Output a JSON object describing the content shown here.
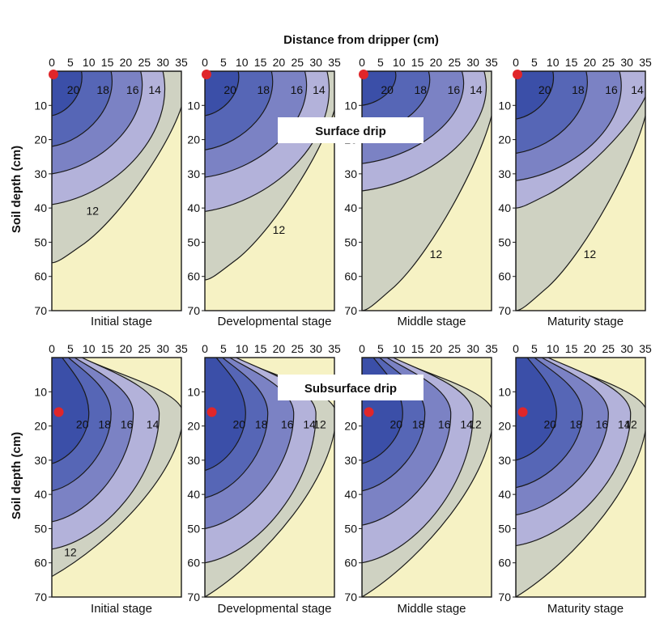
{
  "figure": {
    "top_xlabel": "Distance from dripper (cm)",
    "row_ylabel": "Soil depth (cm)"
  },
  "colors": {
    "c20": "#3b4fa8",
    "c18": "#5666b6",
    "c16": "#7b82c4",
    "c14": "#b3b2da",
    "c12": "#cfd2c2",
    "bg": "#f6f2c4",
    "dripper": "#e0262a"
  },
  "chart_data": [
    {
      "type": "contour",
      "row": "Surface drip",
      "x_ticks": [
        "0",
        "5",
        "10",
        "15",
        "20",
        "25",
        "30",
        "35"
      ],
      "y_ticks": [
        "10",
        "20",
        "30",
        "40",
        "50",
        "60",
        "70"
      ],
      "xlim": [
        0,
        35
      ],
      "ylim": [
        0,
        70
      ],
      "panels": [
        {
          "stage": "Initial stage",
          "dripper": [
            0,
            0
          ],
          "contours": [
            {
              "level": "20",
              "x_surface": 8,
              "z_axis": 13
            },
            {
              "level": "18",
              "x_surface": 16,
              "z_axis": 22
            },
            {
              "level": "16",
              "x_surface": 24,
              "z_axis": 30
            },
            {
              "level": "14",
              "x_surface": 30,
              "z_axis": 39
            },
            {
              "level": "12",
              "x_surface": 35,
              "z_axis": 56
            }
          ]
        },
        {
          "stage": "Developmental stage",
          "dripper": [
            0,
            0
          ],
          "contours": [
            {
              "level": "20",
              "x_surface": 9,
              "z_axis": 13
            },
            {
              "level": "18",
              "x_surface": 18,
              "z_axis": 23
            },
            {
              "level": "16",
              "x_surface": 27,
              "z_axis": 31
            },
            {
              "level": "14",
              "x_surface": 33,
              "z_axis": 41
            },
            {
              "level": "12",
              "x_surface": 35,
              "z_axis": 61
            }
          ]
        },
        {
          "stage": "Middle stage",
          "dripper": [
            0,
            0
          ],
          "contours": [
            {
              "level": "20",
              "x_surface": 9,
              "z_axis": 10
            },
            {
              "level": "18",
              "x_surface": 18,
              "z_axis": 19
            },
            {
              "level": "16",
              "x_surface": 27,
              "z_axis": 27
            },
            {
              "level": "14",
              "x_surface": 33,
              "z_axis": 35
            },
            {
              "level": "12",
              "x_surface": 35,
              "z_axis": 70
            }
          ]
        },
        {
          "stage": "Maturity stage",
          "dripper": [
            0,
            0
          ],
          "contours": [
            {
              "level": "20",
              "x_surface": 10,
              "z_axis": 14
            },
            {
              "level": "18",
              "x_surface": 19,
              "z_axis": 24
            },
            {
              "level": "16",
              "x_surface": 28,
              "z_axis": 32
            },
            {
              "level": "14",
              "x_surface": 35,
              "z_axis": 40
            },
            {
              "level": "12",
              "x_surface": 35,
              "z_axis": 70
            }
          ]
        }
      ]
    },
    {
      "type": "contour",
      "row": "Subsurface drip",
      "x_ticks": [
        "0",
        "5",
        "10",
        "15",
        "20",
        "25",
        "30",
        "35"
      ],
      "y_ticks": [
        "10",
        "20",
        "30",
        "40",
        "50",
        "60",
        "70"
      ],
      "xlim": [
        0,
        35
      ],
      "ylim": [
        0,
        70
      ],
      "panels": [
        {
          "stage": "Initial stage",
          "dripper": [
            1,
            15
          ],
          "contours": [
            {
              "level": "20",
              "x_max": 10,
              "z_axis": 31
            },
            {
              "level": "18",
              "x_max": 16,
              "z_axis": 39
            },
            {
              "level": "16",
              "x_max": 22,
              "z_axis": 48
            },
            {
              "level": "14",
              "x_max": 29,
              "z_axis": 56
            },
            {
              "level": "12",
              "x_max": 35,
              "z_axis": 64
            }
          ]
        },
        {
          "stage": "Developmental stage",
          "dripper": [
            1,
            15
          ],
          "contours": [
            {
              "level": "20",
              "x_max": 11,
              "z_axis": 33
            },
            {
              "level": "18",
              "x_max": 17,
              "z_axis": 41
            },
            {
              "level": "16",
              "x_max": 24,
              "z_axis": 50
            },
            {
              "level": "14",
              "x_max": 30,
              "z_axis": 60
            },
            {
              "level": "12",
              "x_max": 35,
              "z_axis": 70
            }
          ]
        },
        {
          "stage": "Middle stage",
          "dripper": [
            1,
            15
          ],
          "contours": [
            {
              "level": "20",
              "x_max": 11,
              "z_axis": 31
            },
            {
              "level": "18",
              "x_max": 17,
              "z_axis": 39
            },
            {
              "level": "16",
              "x_max": 24,
              "z_axis": 49
            },
            {
              "level": "14",
              "x_max": 30,
              "z_axis": 60
            },
            {
              "level": "12",
              "x_max": 35,
              "z_axis": 70
            }
          ]
        },
        {
          "stage": "Maturity stage",
          "dripper": [
            1,
            15
          ],
          "contours": [
            {
              "level": "20",
              "x_max": 11,
              "z_axis": 30
            },
            {
              "level": "18",
              "x_max": 18,
              "z_axis": 38
            },
            {
              "level": "16",
              "x_max": 25,
              "z_axis": 46
            },
            {
              "level": "14",
              "x_max": 31,
              "z_axis": 55
            },
            {
              "level": "12",
              "x_max": 35,
              "z_axis": 70
            }
          ]
        }
      ]
    }
  ]
}
